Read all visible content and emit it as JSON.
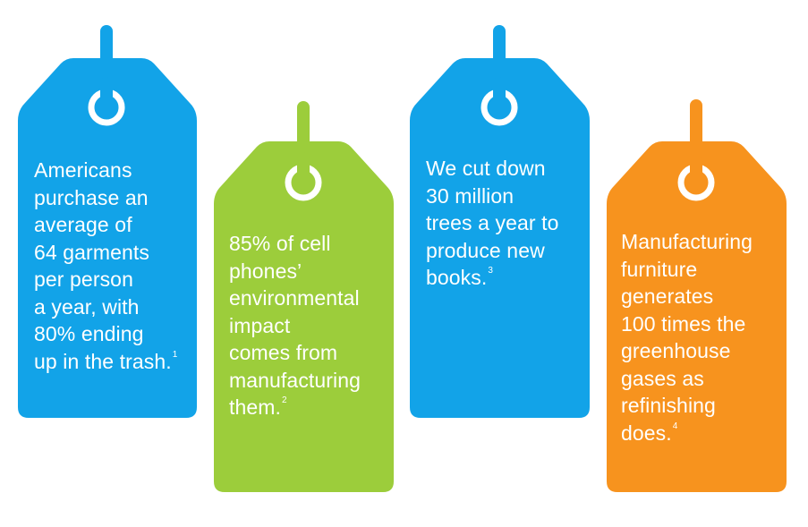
{
  "colors": {
    "blue": "#12a3e8",
    "green": "#9ccd3b",
    "orange": "#f7931e",
    "white": "#ffffff"
  },
  "tags": [
    {
      "color": "#12a3e8",
      "lines": [
        "Americans",
        "purchase an",
        "average of",
        "64 garments",
        "per person",
        "a year, with",
        "80% ending",
        "up in the trash."
      ],
      "footnote": "1"
    },
    {
      "color": "#9ccd3b",
      "lines": [
        "85% of cell",
        "phones’",
        "environmental",
        "impact",
        "comes from",
        "manufacturing",
        "them."
      ],
      "footnote": "2"
    },
    {
      "color": "#12a3e8",
      "lines": [
        "We cut down",
        "30 million",
        "trees a year to",
        "produce new",
        "books."
      ],
      "footnote": "3"
    },
    {
      "color": "#f7931e",
      "lines": [
        "Manufacturing",
        "furniture",
        "generates",
        "100 times the",
        "greenhouse",
        "gases as",
        "refinishing",
        "does."
      ],
      "footnote": "4"
    }
  ]
}
